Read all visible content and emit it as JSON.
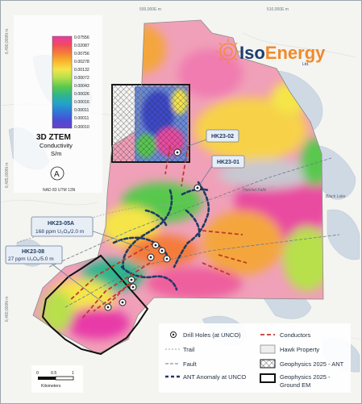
{
  "logo": {
    "part1": "Iso",
    "part2": "Energy",
    "sub": "Ltd."
  },
  "grid": {
    "top": [
      "500,000E m",
      "510,000E m"
    ],
    "left": [
      "6,490,000N m",
      "6,485,000N m",
      "6,480,000N m"
    ]
  },
  "colorbar": {
    "ticks": [
      "0.07556",
      "0.02087",
      "0.00756",
      "0.00278",
      "0.00132",
      "0.00072",
      "0.00043",
      "0.00026",
      "0.00016",
      "0.00011",
      "0.00011",
      "0.00010"
    ],
    "title": "3D ZTEM",
    "subtitle": "Conductivity",
    "units": "S/m",
    "colors": [
      "#e83aa8",
      "#f04a5e",
      "#f47c3a",
      "#f9b42c",
      "#f5e54a",
      "#b7e04c",
      "#59c84e",
      "#2fb58d",
      "#23a3c9",
      "#2f78d8",
      "#4a4fd4",
      "#6a3fc9"
    ]
  },
  "north_arrow": "A",
  "projection": "NAD 83 UTM 13N",
  "callouts": [
    {
      "id": "HK23-02",
      "lines": [
        "HK23-02"
      ]
    },
    {
      "id": "HK23-01",
      "lines": [
        "HK23-01"
      ]
    },
    {
      "id": "HK23-05A",
      "lines": [
        "HK23-05A",
        "168 ppm U₃O₈/2.0 m"
      ]
    },
    {
      "id": "HK23-08",
      "lines": [
        "HK23-08",
        "27 ppm U₃O₈/5.0 m"
      ]
    }
  ],
  "map_labels": {
    "lake1": "Hatchet Falls",
    "lake2": "Black Lake"
  },
  "legend": {
    "left": [
      "Drill Holes (at UNCO)",
      "Trail",
      "Fault",
      "ANT Anomaly at UNCO"
    ],
    "right": [
      "Conductors",
      "Hawk Property",
      "Geophysics 2025 - ANT",
      "Geophysics 2025 -",
      "Ground EM"
    ],
    "colors": {
      "conductor": "#c0392b",
      "fault": "#6a7a88",
      "ant": "#1f3b63",
      "trail": "#9aa3aa"
    }
  },
  "scalebar": {
    "ticks": [
      "0",
      "0.5",
      "1"
    ],
    "units": "Kilometers"
  }
}
